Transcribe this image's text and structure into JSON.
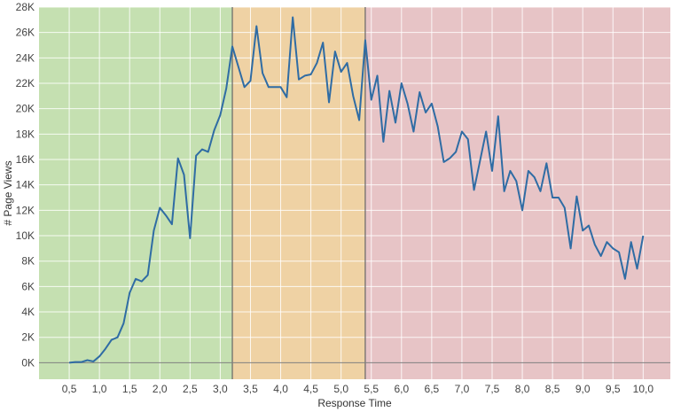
{
  "chart_data": {
    "type": "line",
    "title": "",
    "xlabel": "Response Time",
    "ylabel": "# Page Views",
    "xlim": [
      -0.0,
      10.45
    ],
    "ylim": [
      -1300,
      28000
    ],
    "grid": true,
    "x_ticks": [
      {
        "value": 0.5,
        "label": "0,5"
      },
      {
        "value": 1.0,
        "label": "1,0"
      },
      {
        "value": 1.5,
        "label": "1,5"
      },
      {
        "value": 2.0,
        "label": "2,0"
      },
      {
        "value": 2.5,
        "label": "2,5"
      },
      {
        "value": 3.0,
        "label": "3,0"
      },
      {
        "value": 3.5,
        "label": "3,5"
      },
      {
        "value": 4.0,
        "label": "4,0"
      },
      {
        "value": 4.5,
        "label": "4,5"
      },
      {
        "value": 5.0,
        "label": "5,0"
      },
      {
        "value": 5.5,
        "label": "5,5"
      },
      {
        "value": 6.0,
        "label": "6,0"
      },
      {
        "value": 6.5,
        "label": "6,5"
      },
      {
        "value": 7.0,
        "label": "7,0"
      },
      {
        "value": 7.5,
        "label": "7,5"
      },
      {
        "value": 8.0,
        "label": "8,0"
      },
      {
        "value": 8.5,
        "label": "8,5"
      },
      {
        "value": 9.0,
        "label": "9,0"
      },
      {
        "value": 9.5,
        "label": "9,5"
      },
      {
        "value": 10.0,
        "label": "10,0"
      }
    ],
    "y_ticks": [
      {
        "value": 0,
        "label": "0K"
      },
      {
        "value": 2000,
        "label": "2K"
      },
      {
        "value": 4000,
        "label": "4K"
      },
      {
        "value": 6000,
        "label": "6K"
      },
      {
        "value": 8000,
        "label": "8K"
      },
      {
        "value": 10000,
        "label": "10K"
      },
      {
        "value": 12000,
        "label": "12K"
      },
      {
        "value": 14000,
        "label": "14K"
      },
      {
        "value": 16000,
        "label": "16K"
      },
      {
        "value": 18000,
        "label": "18K"
      },
      {
        "value": 20000,
        "label": "20K"
      },
      {
        "value": 22000,
        "label": "22K"
      },
      {
        "value": 24000,
        "label": "24K"
      },
      {
        "value": 26000,
        "label": "26K"
      },
      {
        "value": 28000,
        "label": "28K"
      }
    ],
    "bands": [
      {
        "from": -0.0,
        "to": 3.2,
        "color": "#c5e0b1"
      },
      {
        "from": 3.2,
        "to": 5.4,
        "color": "#efd2a4"
      },
      {
        "from": 5.4,
        "to": 10.45,
        "color": "#e7c4c6"
      }
    ],
    "colors": {
      "line": "#2f6ca4",
      "grid": "#ffffff",
      "band_edge": "#666666",
      "zero_line": "#808080"
    },
    "series": [
      {
        "x": [
          0.5,
          0.6,
          0.7,
          0.8,
          0.9,
          1.0,
          1.1,
          1.2,
          1.3,
          1.4,
          1.5,
          1.6,
          1.7,
          1.8,
          1.9,
          2.0,
          2.1,
          2.2,
          2.3,
          2.4,
          2.5,
          2.6,
          2.7,
          2.8,
          2.9,
          3.0,
          3.1,
          3.2,
          3.3,
          3.4,
          3.5,
          3.6,
          3.7,
          3.8,
          3.9,
          4.0,
          4.1,
          4.2,
          4.3,
          4.4,
          4.5,
          4.6,
          4.7,
          4.8,
          4.9,
          5.0,
          5.1,
          5.2,
          5.3,
          5.4,
          5.5,
          5.6,
          5.7,
          5.8,
          5.9,
          6.0,
          6.1,
          6.2,
          6.3,
          6.4,
          6.5,
          6.6,
          6.7,
          6.8,
          6.9,
          7.0,
          7.1,
          7.2,
          7.3,
          7.4,
          7.5,
          7.6,
          7.7,
          7.8,
          7.9,
          8.0,
          8.1,
          8.2,
          8.3,
          8.4,
          8.5,
          8.6,
          8.7,
          8.8,
          8.9,
          9.0,
          9.1,
          9.2,
          9.3,
          9.4,
          9.5,
          9.6,
          9.7,
          9.8,
          9.9,
          10.0
        ],
        "values": [
          0,
          50,
          50,
          200,
          100,
          500,
          1100,
          1800,
          2000,
          3100,
          5500,
          6600,
          6400,
          6900,
          10400,
          12200,
          11600,
          10900,
          16100,
          14800,
          9800,
          16300,
          16800,
          16600,
          18300,
          19500,
          21600,
          24900,
          23300,
          21700,
          22200,
          26500,
          22800,
          21700,
          21700,
          21700,
          20900,
          27200,
          22300,
          22600,
          22700,
          23600,
          25200,
          20500,
          24500,
          22900,
          23600,
          21000,
          19100,
          25400,
          20700,
          22600,
          17400,
          21400,
          18900,
          22000,
          20400,
          18200,
          21300,
          19700,
          20400,
          18600,
          15800,
          16100,
          16600,
          18200,
          17600,
          13600,
          15900,
          18200,
          15100,
          19400,
          13500,
          15100,
          14300,
          12000,
          15100,
          14600,
          13500,
          15700,
          13000,
          13000,
          12200,
          9000,
          13100,
          10400,
          10800,
          9300,
          8400,
          9500,
          9000,
          8700,
          6600,
          9500,
          7400,
          10000
        ]
      }
    ]
  }
}
